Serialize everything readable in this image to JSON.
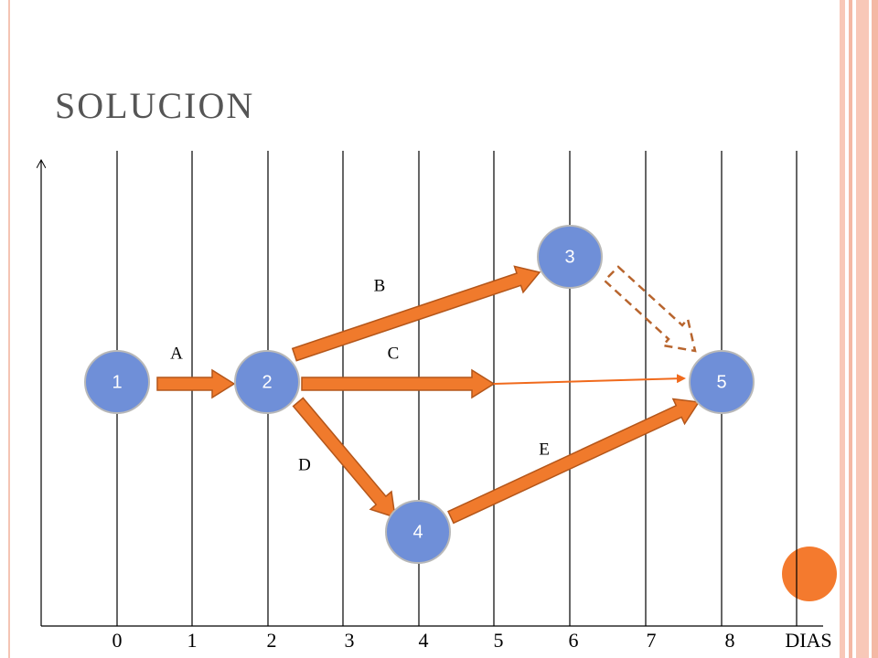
{
  "title": "SOLUCION",
  "axis": {
    "ticks": [
      "0",
      "1",
      "2",
      "3",
      "4",
      "5",
      "6",
      "7",
      "8"
    ],
    "label": "DIAS"
  },
  "nodes": [
    {
      "label": "1"
    },
    {
      "label": "2"
    },
    {
      "label": "3"
    },
    {
      "label": "4"
    },
    {
      "label": "5"
    }
  ],
  "activities": [
    {
      "label": "A"
    },
    {
      "label": "B"
    },
    {
      "label": "C"
    },
    {
      "label": "D"
    },
    {
      "label": "E"
    }
  ]
}
